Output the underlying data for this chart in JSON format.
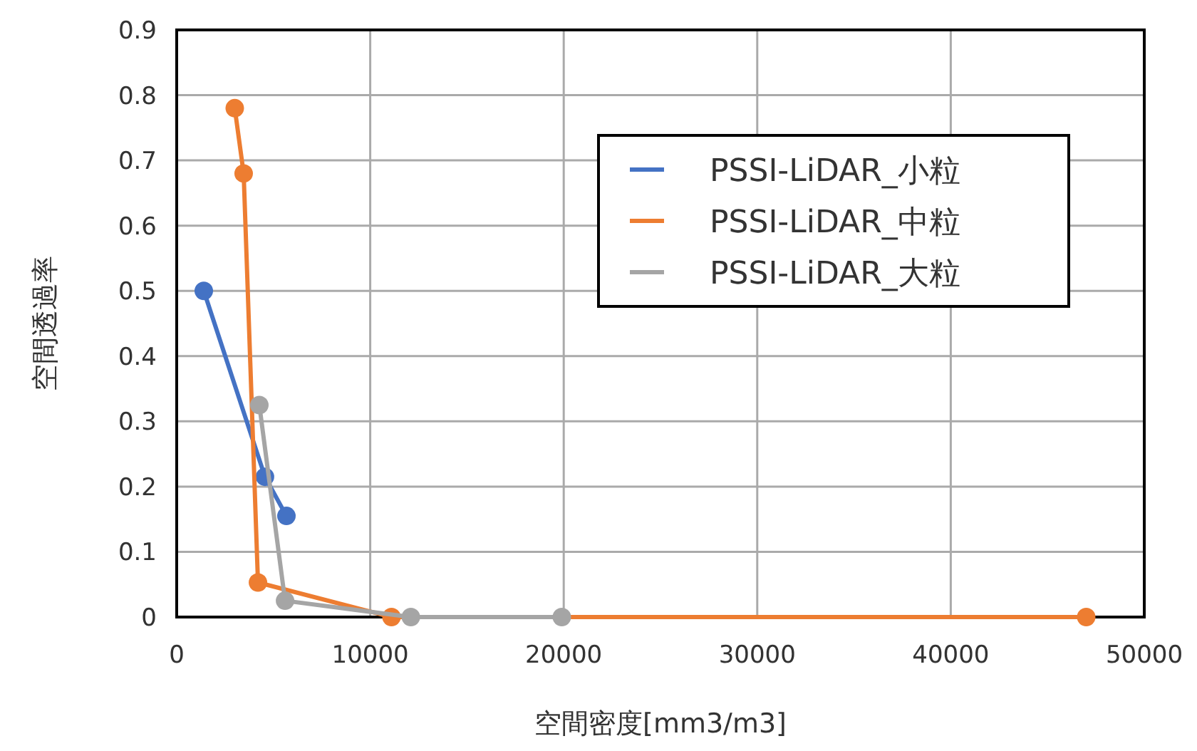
{
  "chart_data": {
    "type": "line",
    "xlabel": "空間密度[mm3/m3]",
    "ylabel": "空間透過率",
    "xlim": [
      0,
      50000
    ],
    "xticks": [
      0,
      10000,
      20000,
      30000,
      40000,
      50000
    ],
    "ylim": [
      0,
      0.9
    ],
    "yticks": [
      0,
      0.1,
      0.2,
      0.3,
      0.4,
      0.5,
      0.6,
      0.7,
      0.8,
      0.9
    ],
    "grid": true,
    "legend": "top right",
    "marker": "circle",
    "line_style": "solid",
    "series": [
      {
        "name": "PSSI-LiDAR_小粒",
        "color": "#4472c4",
        "x": [
          1400,
          4560,
          5670
        ],
        "values": [
          0.5,
          0.215,
          0.155
        ]
      },
      {
        "name": "PSSI-LiDAR_中粒",
        "color": "#ed7d31",
        "x": [
          3000,
          3460,
          4200,
          11100,
          47000
        ],
        "values": [
          0.78,
          0.68,
          0.053,
          0,
          0
        ]
      },
      {
        "name": "PSSI-LiDAR_大粒",
        "color": "#a5a5a5",
        "x": [
          4270,
          5600,
          12100,
          19900
        ],
        "values": [
          0.325,
          0.025,
          0,
          0
        ]
      }
    ]
  }
}
